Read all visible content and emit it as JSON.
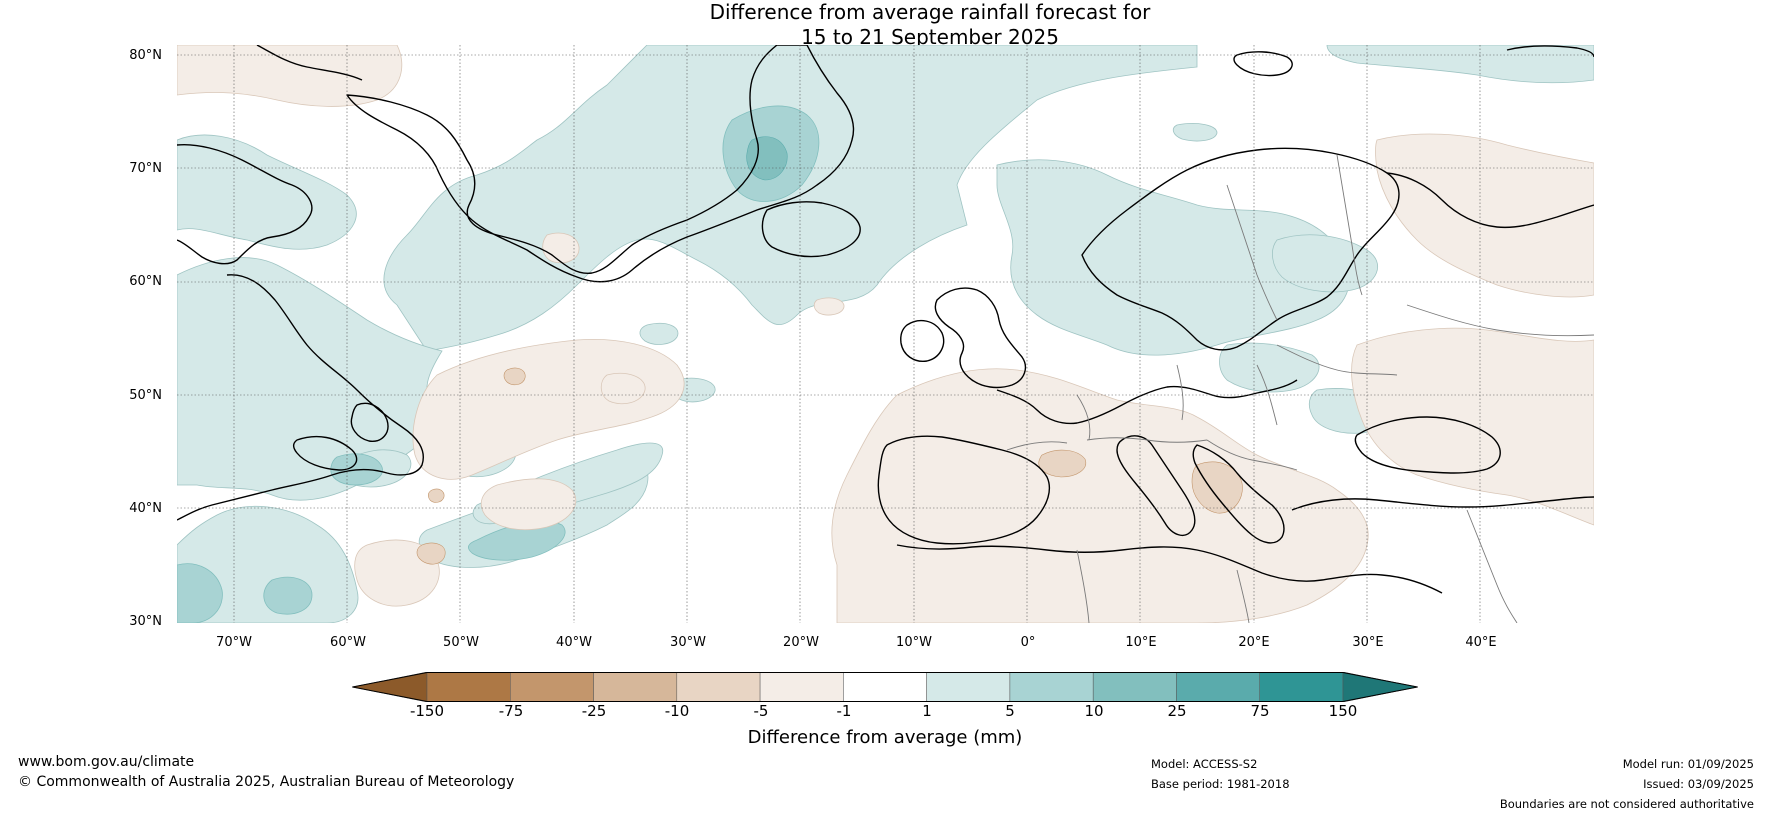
{
  "title": {
    "line1": "Difference from average rainfall forecast for",
    "line2": "15 to 21 September 2025"
  },
  "axes": {
    "lat_labels": [
      "80°N",
      "70°N",
      "60°N",
      "50°N",
      "40°N",
      "30°N"
    ],
    "lon_labels": [
      "70°W",
      "60°W",
      "50°W",
      "40°W",
      "30°W",
      "20°W",
      "10°W",
      "0°",
      "10°E",
      "20°E",
      "30°E",
      "40°E"
    ],
    "lat_range": [
      30,
      81
    ],
    "lon_range": [
      -75,
      50
    ]
  },
  "colorbar": {
    "label": "Difference from average (mm)",
    "ticks": [
      "-150",
      "-75",
      "-25",
      "-10",
      "-5",
      "-1",
      "1",
      "5",
      "10",
      "25",
      "75",
      "150"
    ],
    "colors": [
      "#8c5a2a",
      "#ad7845",
      "#c3966c",
      "#d6b79a",
      "#e8d5c4",
      "#f4ede7",
      "#ffffff",
      "#d5e9e8",
      "#a8d3d3",
      "#82bfbe",
      "#5aabac",
      "#2f9595",
      "#1f7777"
    ]
  },
  "footer": {
    "website": "www.bom.gov.au/climate",
    "copyright": "© Commonwealth of Australia 2025, Australian Bureau of Meteorology",
    "model": "Model: ACCESS-S2",
    "base_period": "Base period: 1981-2018",
    "model_run": "Model run: 01/09/2025",
    "issued": "Issued: 03/09/2025",
    "disclaimer": "Boundaries are not considered authoritative"
  }
}
